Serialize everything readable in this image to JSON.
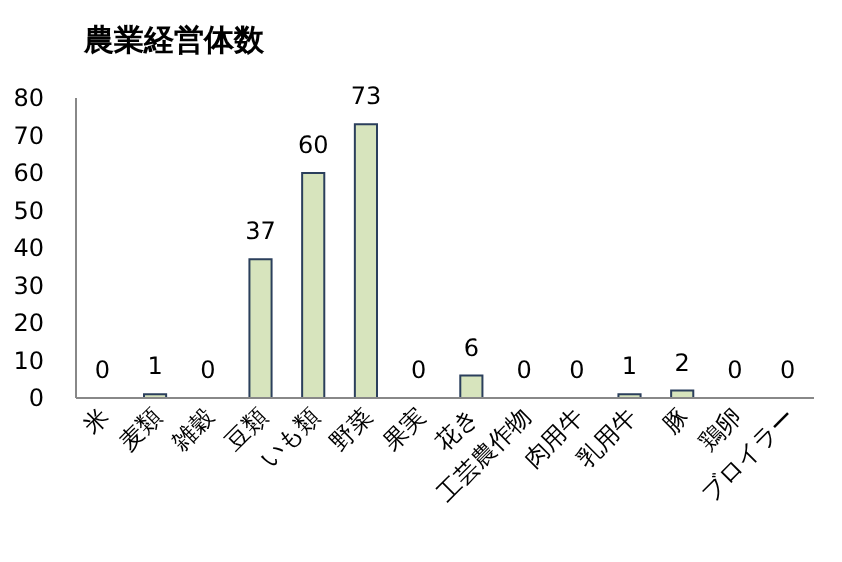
{
  "chart_data": {
    "type": "bar",
    "title": "農業経営体数",
    "categories": [
      "米",
      "麦類",
      "雑穀",
      "豆類",
      "いも類",
      "野菜",
      "果実",
      "花き",
      "工芸農作物",
      "肉用牛",
      "乳用牛",
      "豚",
      "鶏卵",
      "ブロイラー"
    ],
    "values": [
      0,
      1,
      0,
      37,
      60,
      73,
      0,
      6,
      0,
      0,
      1,
      2,
      0,
      0
    ],
    "color": "#d7e4bd",
    "ylim": [
      0,
      80
    ],
    "yticks": [
      0,
      10,
      20,
      30,
      40,
      50,
      60,
      70,
      80
    ],
    "grid": false,
    "data_labels": true
  }
}
